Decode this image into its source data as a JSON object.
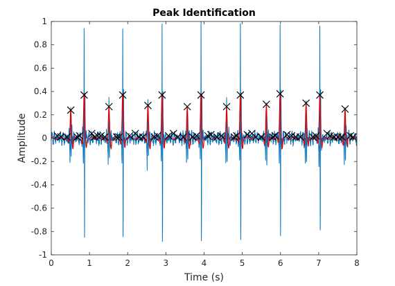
{
  "chart_data": {
    "type": "line",
    "title": "Peak Identification",
    "xlabel": "Time (s)",
    "ylabel": "Amplitude",
    "xlim": [
      0,
      8
    ],
    "ylim": [
      -1,
      1
    ],
    "xticks": [
      0,
      1,
      2,
      3,
      4,
      5,
      6,
      7,
      8
    ],
    "yticks": [
      -1,
      -0.8,
      -0.6,
      -0.4,
      -0.2,
      0,
      0.2,
      0.4,
      0.6,
      0.8,
      1
    ],
    "xtick_labels": [
      "0",
      "1",
      "2",
      "3",
      "4",
      "5",
      "6",
      "7",
      "8"
    ],
    "ytick_labels": [
      "-1",
      "-0.8",
      "-0.6",
      "-0.4",
      "-0.2",
      "0",
      "0.2",
      "0.4",
      "0.6",
      "0.8",
      "1"
    ],
    "grid": false,
    "box": true,
    "colors": {
      "raw_signal": "#0072BD",
      "smoothed_signal": "#E00000",
      "peak_marker": "#000000"
    },
    "beats": [
      {
        "t": 0.51,
        "p": 0.24,
        "pos": 0.3,
        "neg": -0.22,
        "pos2": 0.08
      },
      {
        "t": 0.86,
        "p": 0.37,
        "pos": 0.96,
        "neg": -0.96,
        "pos2": 0.45
      },
      {
        "t": 1.51,
        "p": 0.27,
        "pos": 0.3,
        "neg": -0.22,
        "pos2": 0.08
      },
      {
        "t": 1.87,
        "p": 0.37,
        "pos": 0.92,
        "neg": -0.96,
        "pos2": 0.45
      },
      {
        "t": 2.53,
        "p": 0.28,
        "pos": 0.3,
        "neg": -0.22,
        "pos2": 0.08
      },
      {
        "t": 2.9,
        "p": 0.37,
        "pos": 1.0,
        "neg": -0.96,
        "pos2": 0.45
      },
      {
        "t": 3.56,
        "p": 0.27,
        "pos": 0.28,
        "neg": -0.22,
        "pos2": 0.08
      },
      {
        "t": 3.92,
        "p": 0.37,
        "pos": 0.98,
        "neg": -0.96,
        "pos2": 0.45
      },
      {
        "t": 4.59,
        "p": 0.27,
        "pos": 0.3,
        "neg": -0.22,
        "pos2": 0.08
      },
      {
        "t": 4.95,
        "p": 0.37,
        "pos": 0.98,
        "neg": -0.95,
        "pos2": 0.45
      },
      {
        "t": 5.63,
        "p": 0.29,
        "pos": 0.3,
        "neg": -0.22,
        "pos2": 0.08
      },
      {
        "t": 5.99,
        "p": 0.38,
        "pos": 0.97,
        "neg": -0.95,
        "pos2": 0.45
      },
      {
        "t": 6.67,
        "p": 0.3,
        "pos": 0.32,
        "neg": -0.22,
        "pos2": 0.08
      },
      {
        "t": 7.03,
        "p": 0.37,
        "pos": 0.97,
        "neg": -0.95,
        "pos2": 0.45
      },
      {
        "t": 7.69,
        "p": 0.25,
        "pos": 0.27,
        "neg": -0.22,
        "pos2": 0.08
      }
    ],
    "minor_peaks": [
      {
        "x": 0.16,
        "y": 0.02
      },
      {
        "x": 0.25,
        "y": 0.01
      },
      {
        "x": 0.41,
        "y": 0.01
      },
      {
        "x": 0.68,
        "y": 0.01
      },
      {
        "x": 0.74,
        "y": 0.02
      },
      {
        "x": 1.06,
        "y": 0.04
      },
      {
        "x": 1.13,
        "y": 0.01
      },
      {
        "x": 1.21,
        "y": 0.02
      },
      {
        "x": 1.3,
        "y": 0.02
      },
      {
        "x": 1.4,
        "y": 0.01
      },
      {
        "x": 1.71,
        "y": 0.01
      },
      {
        "x": 1.77,
        "y": 0.01
      },
      {
        "x": 2.05,
        "y": 0.02
      },
      {
        "x": 2.2,
        "y": 0.04
      },
      {
        "x": 2.3,
        "y": 0.01
      },
      {
        "x": 2.4,
        "y": 0.01
      },
      {
        "x": 2.7,
        "y": 0.01
      },
      {
        "x": 2.78,
        "y": 0.02
      },
      {
        "x": 3.07,
        "y": 0.02
      },
      {
        "x": 3.2,
        "y": 0.04
      },
      {
        "x": 3.31,
        "y": 0.01
      },
      {
        "x": 3.45,
        "y": 0.01
      },
      {
        "x": 3.7,
        "y": 0.01
      },
      {
        "x": 3.8,
        "y": 0.02
      },
      {
        "x": 4.1,
        "y": 0.02
      },
      {
        "x": 4.18,
        "y": 0.03
      },
      {
        "x": 4.34,
        "y": 0.01
      },
      {
        "x": 4.45,
        "y": 0.02
      },
      {
        "x": 4.79,
        "y": 0.01
      },
      {
        "x": 4.85,
        "y": 0.02
      },
      {
        "x": 5.13,
        "y": 0.03
      },
      {
        "x": 5.25,
        "y": 0.04
      },
      {
        "x": 5.35,
        "y": 0.01
      },
      {
        "x": 5.5,
        "y": 0.01
      },
      {
        "x": 5.8,
        "y": 0.01
      },
      {
        "x": 5.86,
        "y": 0.02
      },
      {
        "x": 6.17,
        "y": 0.03
      },
      {
        "x": 6.29,
        "y": 0.02
      },
      {
        "x": 6.4,
        "y": 0.01
      },
      {
        "x": 6.52,
        "y": 0.01
      },
      {
        "x": 6.85,
        "y": 0.01
      },
      {
        "x": 6.93,
        "y": 0.02
      },
      {
        "x": 7.22,
        "y": 0.04
      },
      {
        "x": 7.3,
        "y": 0.02
      },
      {
        "x": 7.4,
        "y": 0.01
      },
      {
        "x": 7.5,
        "y": 0.01
      },
      {
        "x": 7.61,
        "y": 0.01
      },
      {
        "x": 7.83,
        "y": 0.02
      },
      {
        "x": 7.9,
        "y": 0.01
      }
    ]
  }
}
